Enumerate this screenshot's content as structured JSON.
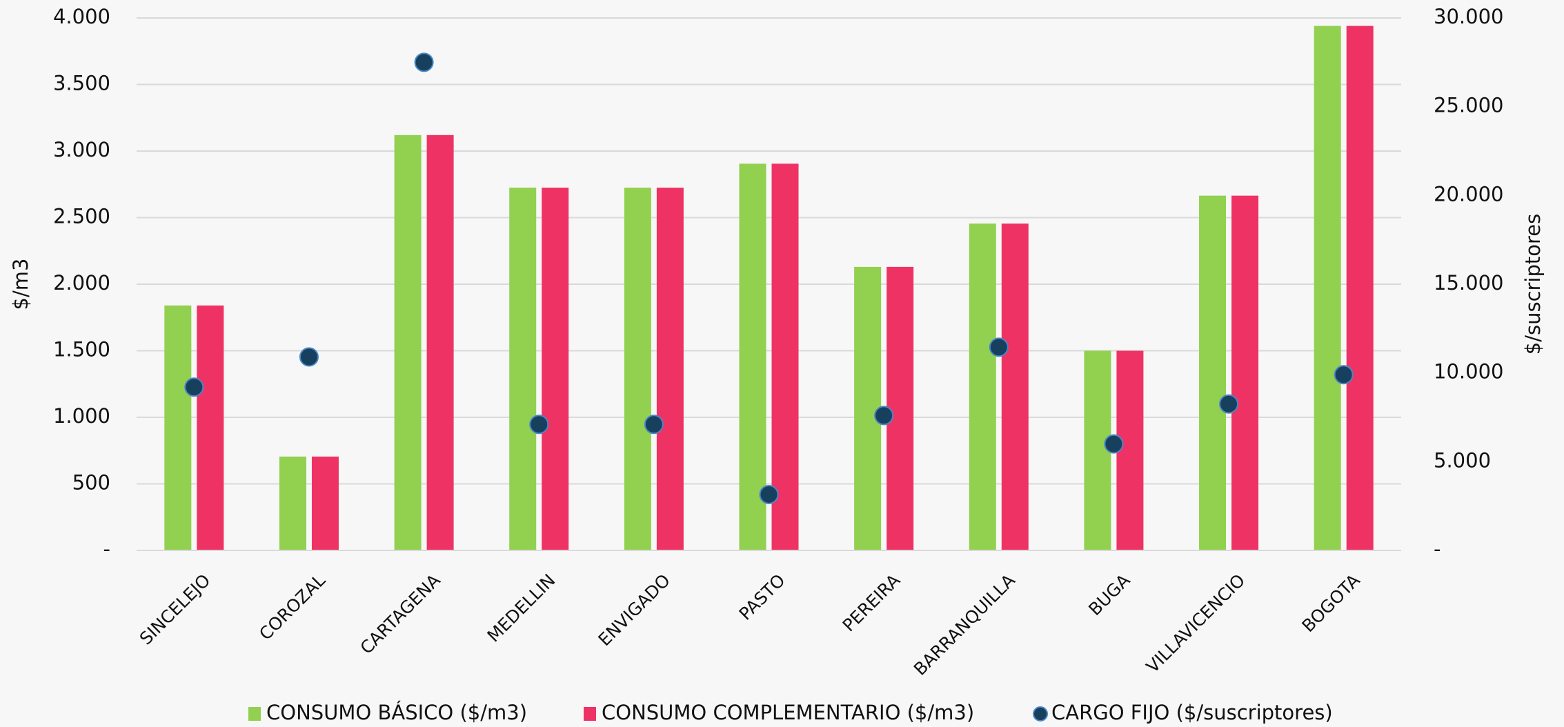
{
  "chart_data": {
    "type": "bar",
    "categories": [
      "SINCELEJO",
      "COROZAL",
      "CARTAGENA",
      "MEDELLIN",
      "ENVIGADO",
      "PASTO",
      "PEREIRA",
      "BARRANQUILLA",
      "BUGA",
      "VILLAVICENCIO",
      "BOGOTA"
    ],
    "series": [
      {
        "name": "CONSUMO BÁSICO ($/m3)",
        "type": "bar",
        "color": "#92d050",
        "values": [
          1840,
          705,
          3120,
          2725,
          2725,
          2905,
          2130,
          2455,
          1500,
          2665,
          3940
        ]
      },
      {
        "name": "CONSUMO COMPLEMENTARIO ($/m3)",
        "type": "bar",
        "color": "#ee3364",
        "values": [
          1840,
          705,
          3120,
          2725,
          2725,
          2905,
          2130,
          2455,
          1500,
          2665,
          3940
        ]
      },
      {
        "name": "CARGO FIJO ($/suscriptores)",
        "type": "scatter",
        "axis": "y2",
        "color": "#17405f",
        "values": [
          9200,
          10900,
          27500,
          7100,
          7100,
          3150,
          7600,
          11450,
          6000,
          8250,
          9900
        ]
      }
    ],
    "y_label": "$/m3",
    "y2_label": "$/suscriptores",
    "ylim": [
      0,
      4000
    ],
    "yticks": [
      {
        "value": 0,
        "label": "-"
      },
      500,
      {
        "value": 1000,
        "label": "1.000"
      },
      {
        "value": 1500,
        "label": "1.500"
      },
      {
        "value": 2000,
        "label": "2.000"
      },
      {
        "value": 2500,
        "label": "2.500"
      },
      {
        "value": 3000,
        "label": "3.000"
      },
      {
        "value": 3500,
        "label": "3.500"
      },
      {
        "value": 4000,
        "label": "4.000"
      }
    ],
    "y2lim": [
      0,
      30000
    ],
    "y2ticks": [
      {
        "value": 0,
        "label": "-"
      },
      {
        "value": 5000,
        "label": "5.000"
      },
      {
        "value": 10000,
        "label": "10.000"
      },
      {
        "value": 15000,
        "label": "15.000"
      },
      {
        "value": 20000,
        "label": "20.000"
      },
      {
        "value": 25000,
        "label": "25.000"
      },
      {
        "value": 30000,
        "label": "30.000"
      }
    ],
    "grid": true,
    "legend": "bottom"
  }
}
